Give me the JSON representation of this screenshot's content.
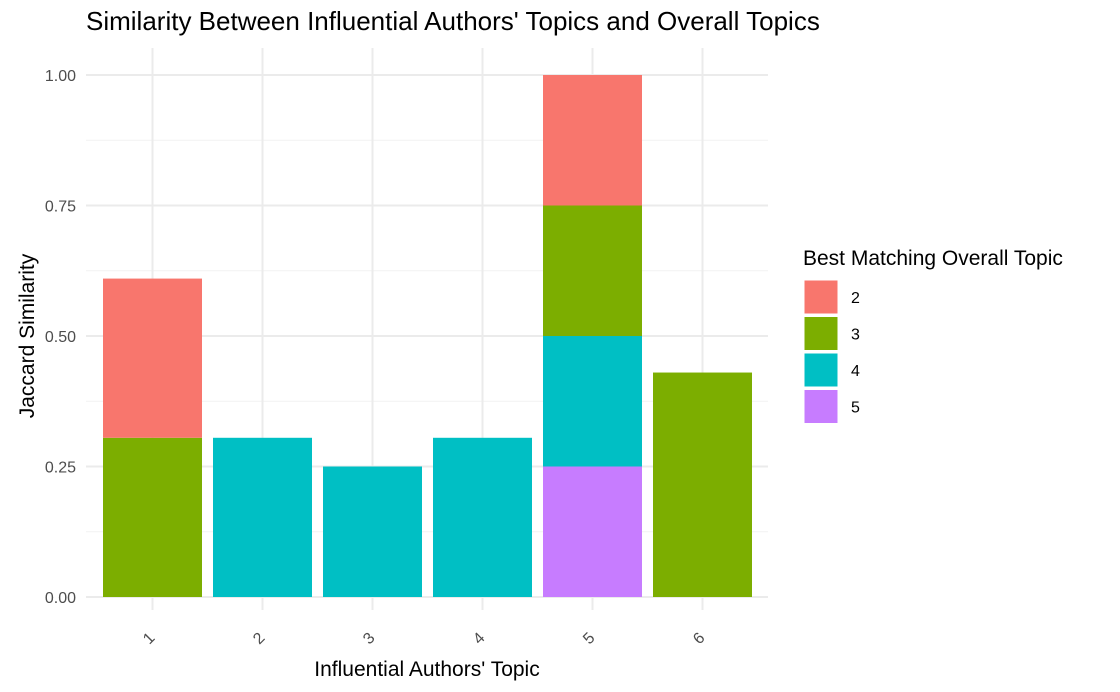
{
  "chart_data": {
    "type": "bar",
    "stacked": true,
    "title": "Similarity Between Influential Authors' Topics and Overall Topics",
    "xlabel": "Influential Authors' Topic",
    "ylabel": "Jaccard Similarity",
    "ylim": [
      0,
      1.05
    ],
    "grid": true,
    "legend_placement": "right",
    "categories": [
      "1",
      "2",
      "3",
      "4",
      "5",
      "6"
    ],
    "y_ticks": [
      "0.00",
      "0.25",
      "0.50",
      "0.75",
      "1.00"
    ],
    "legend_title": "Best Matching Overall Topic",
    "series": [
      {
        "name": "2",
        "color": "#F8766D",
        "values": [
          0.305,
          0,
          0,
          0,
          0.25,
          0
        ]
      },
      {
        "name": "3",
        "color": "#7CAE00",
        "values": [
          0.305,
          0,
          0,
          0,
          0.25,
          0.43
        ]
      },
      {
        "name": "4",
        "color": "#00BFC4",
        "values": [
          0,
          0.305,
          0.25,
          0.305,
          0.25,
          0
        ]
      },
      {
        "name": "5",
        "color": "#C77CFF",
        "values": [
          0,
          0,
          0,
          0,
          0.25,
          0
        ]
      }
    ]
  }
}
